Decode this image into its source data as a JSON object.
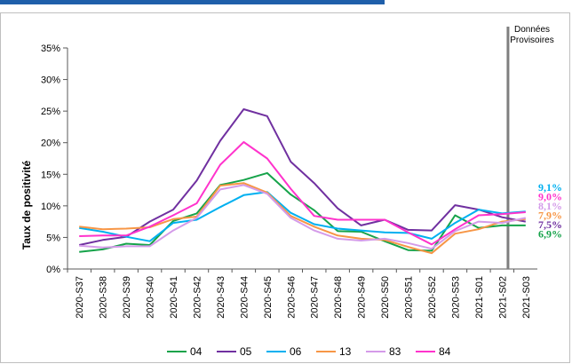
{
  "chart_data": {
    "type": "line",
    "ylabel": "Taux de positivité",
    "xlabel": "",
    "ylim": [
      0,
      35
    ],
    "y_ticks": [
      "0%",
      "5%",
      "10%",
      "15%",
      "20%",
      "25%",
      "30%",
      "35%"
    ],
    "categories": [
      "2020-S37",
      "2020-S38",
      "2020-S39",
      "2020-S40",
      "2020-S41",
      "2020-S42",
      "2020-S43",
      "2020-S44",
      "2020-S45",
      "2020-S46",
      "2020-S47",
      "2020-S48",
      "2020-S49",
      "2020-S50",
      "2020-S51",
      "2020-S52",
      "2020-S53",
      "2021-S01",
      "2021-S02",
      "2021-S03"
    ],
    "annotation": {
      "line1": "Données",
      "line2": "Provisoires"
    },
    "legend_position": "bottom",
    "series": [
      {
        "name": "04",
        "color": "#16a34a",
        "end_label": "6,9%",
        "values": [
          2.7,
          3.1,
          4.0,
          3.8,
          7.6,
          8.8,
          13.3,
          14.1,
          15.2,
          11.8,
          9.3,
          6.0,
          5.9,
          4.4,
          3.0,
          2.9,
          8.5,
          6.5,
          6.9,
          6.9
        ]
      },
      {
        "name": "05",
        "color": "#7030a0",
        "end_label": "7,5%",
        "values": [
          3.8,
          4.6,
          5.1,
          7.5,
          9.4,
          14.0,
          20.3,
          25.3,
          24.2,
          17.0,
          13.6,
          9.6,
          6.9,
          7.8,
          6.2,
          6.1,
          10.1,
          9.4,
          8.2,
          7.5
        ]
      },
      {
        "name": "06",
        "color": "#00b0f0",
        "end_label": "9,1%",
        "values": [
          6.5,
          5.9,
          5.1,
          4.4,
          7.3,
          7.8,
          9.8,
          11.7,
          12.2,
          8.9,
          7.1,
          6.4,
          6.1,
          5.8,
          5.7,
          4.8,
          7.3,
          9.4,
          8.8,
          9.1
        ]
      },
      {
        "name": "13",
        "color": "#f79646",
        "end_label": "7,9%",
        "values": [
          6.7,
          6.3,
          6.4,
          6.6,
          7.9,
          8.3,
          13.2,
          13.6,
          12.1,
          8.4,
          6.7,
          5.3,
          4.8,
          4.6,
          3.5,
          2.5,
          5.6,
          6.3,
          7.5,
          7.9
        ]
      },
      {
        "name": "83",
        "color": "#d49be9",
        "end_label": "8,1%",
        "values": [
          3.7,
          3.4,
          3.6,
          3.6,
          6.1,
          8.1,
          12.6,
          13.3,
          11.9,
          8.1,
          6.1,
          4.8,
          4.5,
          4.8,
          4.1,
          3.2,
          6.0,
          7.5,
          7.3,
          8.1
        ]
      },
      {
        "name": "84",
        "color": "#ff33cc",
        "end_label": "9,0%",
        "values": [
          5.2,
          5.3,
          5.3,
          6.7,
          8.5,
          10.4,
          16.5,
          20.1,
          17.5,
          12.7,
          8.4,
          7.8,
          7.8,
          7.8,
          5.8,
          3.9,
          6.3,
          8.5,
          8.7,
          9.0
        ]
      }
    ]
  }
}
